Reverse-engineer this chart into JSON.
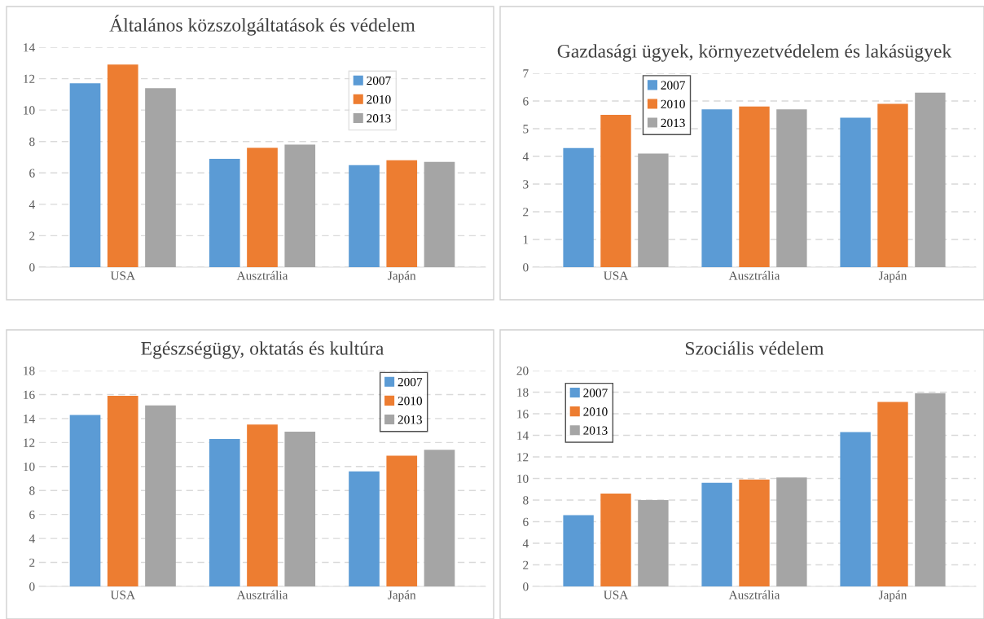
{
  "chart_data": [
    {
      "type": "bar",
      "title": "Általános közszolgáltatások és védelem",
      "categories": [
        "USA",
        "Ausztrália",
        "Japán"
      ],
      "ylim": [
        0,
        14
      ],
      "yticks": [
        0,
        2,
        4,
        6,
        8,
        10,
        12,
        14
      ],
      "grid": "y",
      "legend": "top right",
      "series": [
        {
          "name": "2007",
          "color": "#5b9bd5",
          "values": [
            11.7,
            6.9,
            6.5
          ]
        },
        {
          "name": "2010",
          "color": "#ed7d31",
          "values": [
            12.9,
            7.6,
            6.8
          ]
        },
        {
          "name": "2013",
          "color": "#a5a5a5",
          "values": [
            11.4,
            7.8,
            6.7
          ]
        }
      ]
    },
    {
      "type": "bar",
      "title": "Gazdasági ügyek, környezetvédelem és lakásügyek",
      "categories": [
        "USA",
        "Ausztrália",
        "Japán"
      ],
      "ylim": [
        0,
        7
      ],
      "yticks": [
        0,
        1,
        2,
        3,
        4,
        5,
        6,
        7
      ],
      "grid": "y",
      "legend": "top left",
      "series": [
        {
          "name": "2007",
          "color": "#5b9bd5",
          "values": [
            4.3,
            5.7,
            5.4
          ]
        },
        {
          "name": "2010",
          "color": "#ed7d31",
          "values": [
            5.5,
            5.8,
            5.9
          ]
        },
        {
          "name": "2013",
          "color": "#a5a5a5",
          "values": [
            4.1,
            5.7,
            6.3
          ]
        }
      ]
    },
    {
      "type": "bar",
      "title": "Egészségügy, oktatás és kultúra",
      "categories": [
        "USA",
        "Ausztrália",
        "Japán"
      ],
      "ylim": [
        0,
        18
      ],
      "yticks": [
        0,
        2,
        4,
        6,
        8,
        10,
        12,
        14,
        16,
        18
      ],
      "grid": "y",
      "legend": "top right",
      "series": [
        {
          "name": "2007",
          "color": "#5b9bd5",
          "values": [
            14.3,
            12.3,
            9.6
          ]
        },
        {
          "name": "2010",
          "color": "#ed7d31",
          "values": [
            15.9,
            13.5,
            10.9
          ]
        },
        {
          "name": "2013",
          "color": "#a5a5a5",
          "values": [
            15.1,
            12.9,
            11.4
          ]
        }
      ]
    },
    {
      "type": "bar",
      "title": "Szociális védelem",
      "categories": [
        "USA",
        "Ausztrália",
        "Japán"
      ],
      "ylim": [
        0,
        20
      ],
      "yticks": [
        0,
        2,
        4,
        6,
        8,
        10,
        12,
        14,
        16,
        18,
        20
      ],
      "grid": "y",
      "legend": "top left",
      "series": [
        {
          "name": "2007",
          "color": "#5b9bd5",
          "values": [
            6.6,
            9.6,
            14.3
          ]
        },
        {
          "name": "2010",
          "color": "#ed7d31",
          "values": [
            8.6,
            9.9,
            17.1
          ]
        },
        {
          "name": "2013",
          "color": "#a5a5a5",
          "values": [
            8.0,
            10.1,
            17.9
          ]
        }
      ]
    }
  ]
}
